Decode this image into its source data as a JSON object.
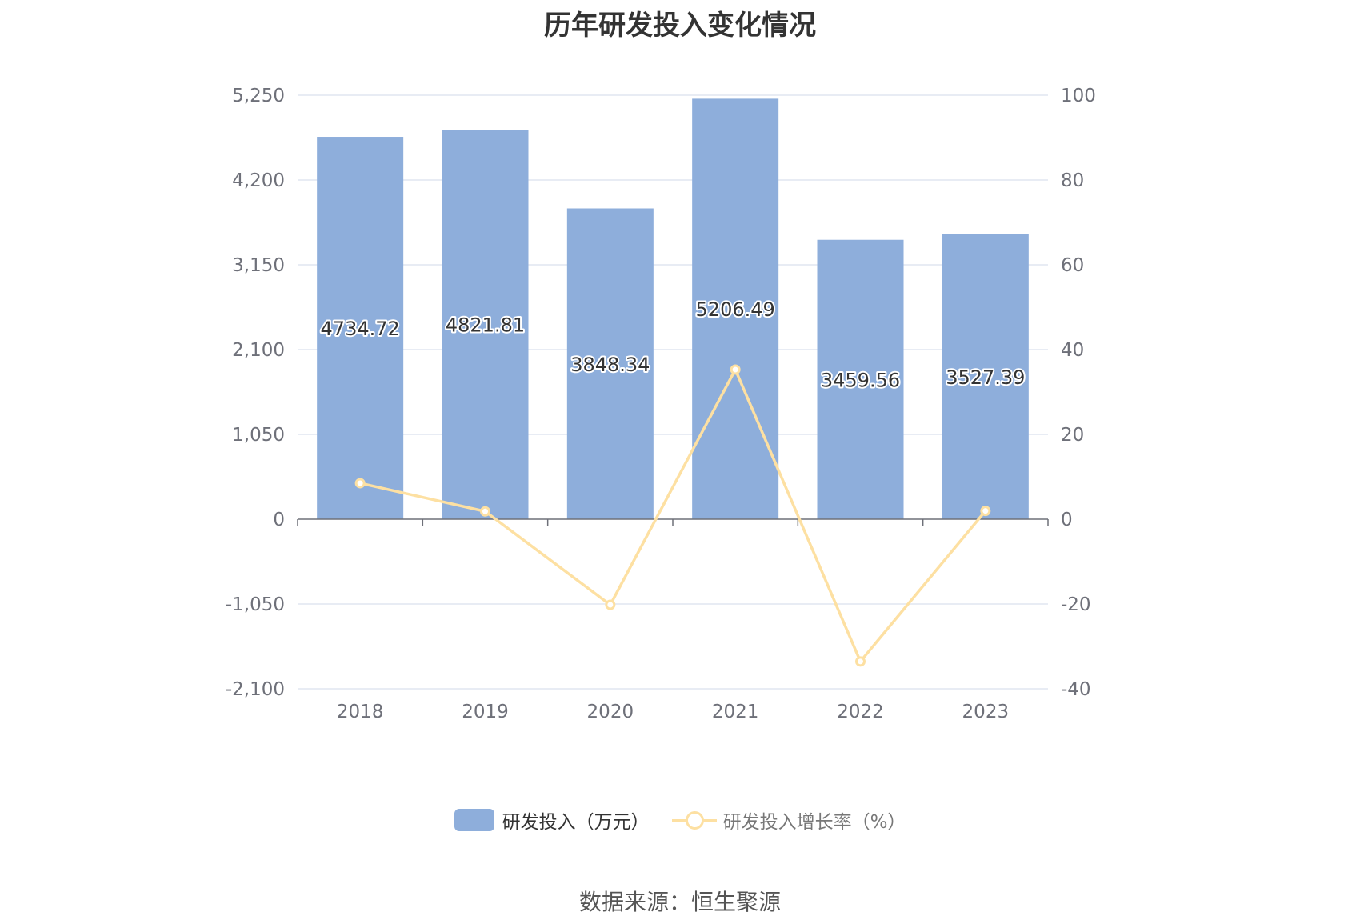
{
  "chart_data": {
    "type": "bar",
    "title": "历年研发投入变化情况",
    "categories": [
      "2018",
      "2019",
      "2020",
      "2021",
      "2022",
      "2023"
    ],
    "series": [
      {
        "name": "研发投入（万元）",
        "type": "bar",
        "axis": "left",
        "values": [
          4734.72,
          4821.81,
          3848.34,
          5206.49,
          3459.56,
          3527.39
        ],
        "labels": [
          "4734.72",
          "4821.81",
          "3848.34",
          "5206.49",
          "3459.56",
          "3527.39"
        ],
        "color": "#8eaedb"
      },
      {
        "name": "研发投入增长率（%）",
        "type": "line",
        "axis": "right",
        "values": [
          8.5,
          1.84,
          -20.19,
          35.29,
          -33.55,
          1.96
        ],
        "color": "#fde0a2"
      }
    ],
    "y_left": {
      "ylim": [
        -2100,
        5250
      ],
      "ticks": [
        5250,
        4200,
        3150,
        2100,
        1050,
        0,
        -1050,
        -2100
      ],
      "tick_labels": [
        "5,250",
        "4,200",
        "3,150",
        "2,100",
        "1,050",
        "0",
        "-1,050",
        "-2,100"
      ]
    },
    "y_right": {
      "ylim": [
        -40,
        100
      ],
      "ticks": [
        100,
        80,
        60,
        40,
        20,
        0,
        -20,
        -40
      ],
      "tick_labels": [
        "100",
        "80",
        "60",
        "40",
        "20",
        "0",
        "-20",
        "-40"
      ]
    },
    "grid": true,
    "legend_position": "bottom",
    "source": "数据来源：恒生聚源"
  }
}
